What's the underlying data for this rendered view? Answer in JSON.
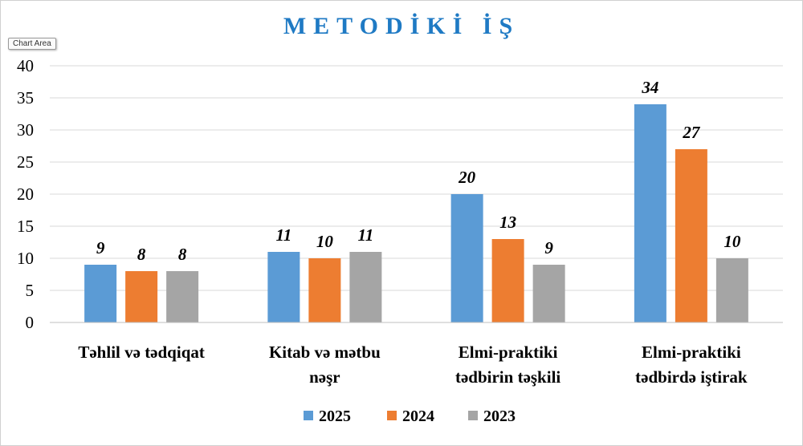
{
  "tooltip": "Chart Area",
  "chart_data": {
    "type": "bar",
    "title": "METODİKİ İŞ",
    "title_color": "#1F7AC4",
    "categories": [
      [
        "Təhlil və tədqiqat"
      ],
      [
        "Kitab və mətbu",
        "nəşr"
      ],
      [
        "Elmi-praktiki",
        "tədbirin təşkili"
      ],
      [
        "Elmi-praktiki",
        "tədbirdə iştirak"
      ]
    ],
    "series": [
      {
        "name": "2025",
        "color": "#5B9BD5",
        "values": [
          9,
          11,
          20,
          34
        ]
      },
      {
        "name": "2024",
        "color": "#ED7D31",
        "values": [
          8,
          10,
          13,
          27
        ]
      },
      {
        "name": "2023",
        "color": "#A5A5A5",
        "values": [
          8,
          11,
          9,
          10
        ]
      }
    ],
    "ylim": [
      0,
      40
    ],
    "yticks": [
      0,
      5,
      10,
      15,
      20,
      25,
      30,
      35,
      40
    ],
    "grid": true,
    "legend": "bottom",
    "data_labels": true
  }
}
